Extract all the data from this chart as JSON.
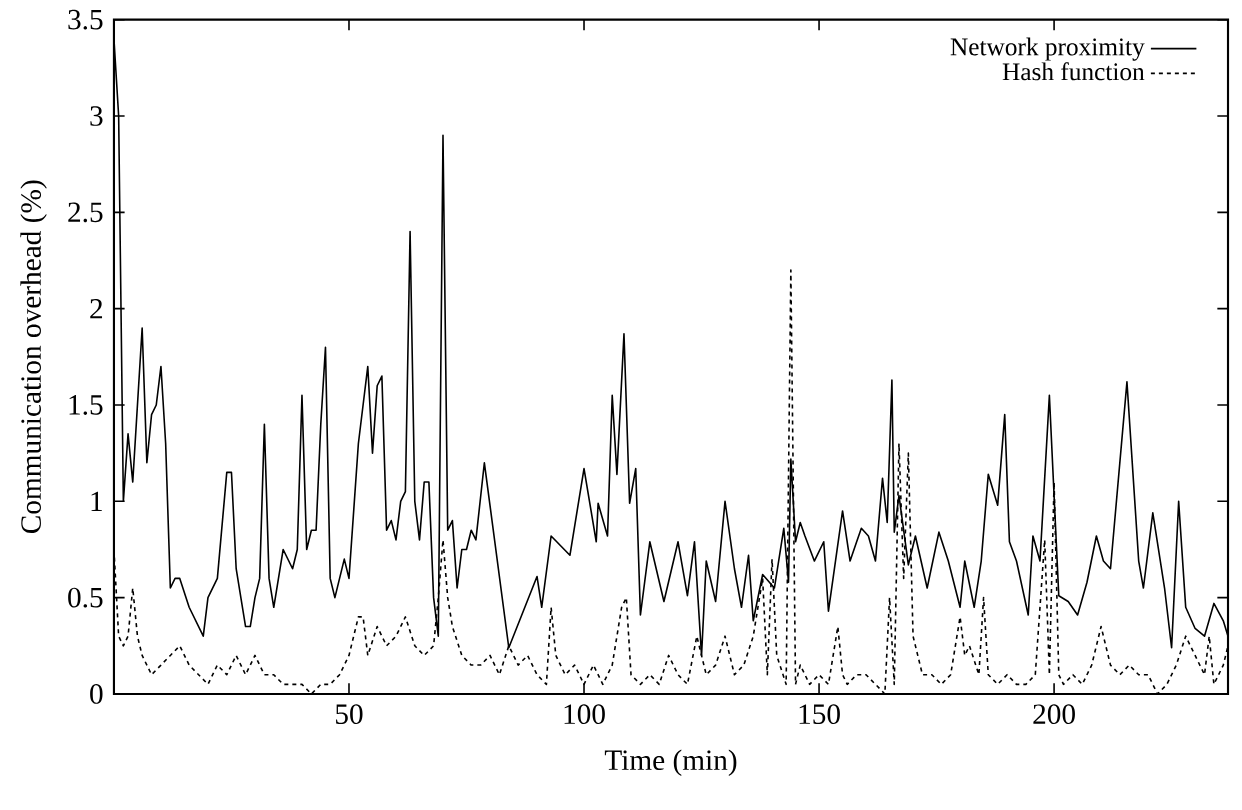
{
  "chart_data": {
    "type": "line",
    "xlabel": "Time (min)",
    "ylabel": "Communication overhead (%)",
    "xlim": [
      0,
      237
    ],
    "ylim": [
      0,
      3.5
    ],
    "xticks": [
      50,
      100,
      150,
      200
    ],
    "yticks": [
      0,
      0.5,
      1,
      1.5,
      2,
      2.5,
      3,
      3.5
    ],
    "grid": false,
    "legend": "top right",
    "marker": "none",
    "series": [
      {
        "name": "Network proximity",
        "color": "#000000",
        "line_style": "solid",
        "x": [
          0,
          1,
          2,
          3,
          4,
          6,
          7,
          8,
          9,
          10,
          11,
          12,
          13,
          14,
          16,
          18,
          19,
          20,
          22,
          24,
          25,
          26,
          28,
          29,
          30,
          31,
          32,
          33,
          34,
          36,
          38,
          39,
          40,
          41,
          42,
          43,
          44,
          45,
          46,
          47,
          48,
          49,
          50,
          52,
          53,
          54,
          55,
          56,
          57,
          58,
          59,
          60,
          61,
          62,
          63,
          64,
          65,
          66,
          67,
          68,
          69,
          70,
          71,
          72,
          73,
          74,
          75,
          76,
          77,
          78.8,
          84,
          90,
          91,
          93,
          97,
          100,
          102.6,
          103,
          105,
          106,
          107,
          108.5,
          109.7,
          111,
          112,
          114,
          117,
          120,
          122,
          123.5,
          125,
          126,
          128,
          130,
          132,
          133.5,
          135,
          136,
          138,
          140.5,
          142.5,
          143.5,
          144,
          145,
          146,
          147,
          149,
          151,
          152,
          155,
          156.6,
          158,
          159,
          160.5,
          162,
          163.5,
          164.5,
          165.5,
          166,
          167,
          169,
          170.5,
          173,
          175.5,
          177.5,
          180,
          181,
          183,
          184.5,
          186,
          188,
          189.5,
          190.5,
          192,
          194.5,
          195.5,
          197,
          199,
          201,
          203,
          205,
          207,
          209,
          210.5,
          212,
          215.5,
          218,
          219,
          221,
          223.5,
          225,
          226.5,
          228,
          230,
          232,
          234,
          236,
          237
        ],
        "values": [
          3.4,
          3.0,
          1.0,
          1.35,
          1.1,
          1.9,
          1.2,
          1.45,
          1.5,
          1.7,
          1.3,
          0.55,
          0.6,
          0.6,
          0.45,
          0.35,
          0.3,
          0.5,
          0.6,
          1.15,
          1.15,
          0.65,
          0.35,
          0.35,
          0.5,
          0.6,
          1.4,
          0.6,
          0.45,
          0.75,
          0.65,
          0.75,
          1.55,
          0.75,
          0.85,
          0.85,
          1.4,
          1.8,
          0.6,
          0.5,
          0.6,
          0.7,
          0.6,
          1.3,
          1.5,
          1.7,
          1.25,
          1.6,
          1.65,
          0.85,
          0.9,
          0.8,
          1.0,
          1.05,
          2.4,
          1.0,
          0.8,
          1.1,
          1.1,
          0.5,
          0.3,
          2.9,
          0.85,
          0.9,
          0.55,
          0.75,
          0.75,
          0.85,
          0.8,
          1.2,
          0.24,
          0.61,
          0.45,
          0.82,
          0.72,
          1.17,
          0.79,
          0.99,
          0.82,
          1.55,
          1.14,
          1.87,
          0.99,
          1.17,
          0.41,
          0.79,
          0.48,
          0.79,
          0.51,
          0.79,
          0.2,
          0.69,
          0.48,
          1.0,
          0.65,
          0.45,
          0.72,
          0.38,
          0.62,
          0.55,
          0.86,
          0.58,
          1.22,
          0.79,
          0.89,
          0.82,
          0.69,
          0.79,
          0.43,
          0.95,
          0.69,
          0.79,
          0.86,
          0.82,
          0.69,
          1.12,
          0.89,
          1.63,
          0.84,
          1.03,
          0.67,
          0.82,
          0.55,
          0.84,
          0.69,
          0.45,
          0.69,
          0.45,
          0.69,
          1.14,
          0.98,
          1.45,
          0.79,
          0.69,
          0.41,
          0.82,
          0.69,
          1.55,
          0.51,
          0.48,
          0.41,
          0.58,
          0.82,
          0.69,
          0.65,
          1.62,
          0.69,
          0.55,
          0.94,
          0.55,
          0.24,
          1.0,
          0.45,
          0.34,
          0.3,
          0.47,
          0.38,
          0.3
        ]
      },
      {
        "name": "Hash function",
        "color": "#000000",
        "line_style": "dashed",
        "x": [
          0,
          1,
          2,
          3,
          4,
          5,
          6,
          8,
          10,
          12,
          14,
          16,
          18,
          20,
          22,
          24,
          26,
          28,
          30,
          32,
          34,
          36,
          38,
          40,
          42,
          44,
          46,
          48,
          50,
          52,
          53,
          54,
          56,
          58,
          60,
          62,
          64,
          66,
          68,
          69,
          70,
          71,
          72,
          74,
          76,
          78,
          80,
          82,
          84,
          86,
          88,
          90,
          92,
          93,
          94,
          96,
          98,
          100,
          102,
          104,
          106,
          108,
          109,
          110,
          112,
          114,
          116,
          118,
          120,
          122,
          124,
          126,
          128,
          130,
          132,
          134,
          136,
          138,
          139,
          140,
          141,
          143,
          144,
          145,
          146,
          148,
          150,
          152,
          154,
          155,
          156,
          158,
          160,
          162,
          164,
          165,
          166,
          167,
          168,
          169,
          170,
          172,
          174,
          176,
          178,
          180,
          181,
          182,
          184,
          185,
          186,
          188,
          190,
          192,
          194,
          196,
          198,
          199,
          200,
          201,
          202,
          204,
          206,
          208,
          210,
          212,
          214,
          216,
          218,
          220,
          222,
          224,
          226,
          228,
          230,
          232,
          233,
          234,
          236,
          237
        ],
        "values": [
          0.75,
          0.3,
          0.25,
          0.3,
          0.55,
          0.3,
          0.2,
          0.1,
          0.15,
          0.2,
          0.25,
          0.15,
          0.1,
          0.05,
          0.15,
          0.1,
          0.2,
          0.1,
          0.2,
          0.1,
          0.1,
          0.05,
          0.05,
          0.05,
          0.0,
          0.05,
          0.05,
          0.1,
          0.2,
          0.4,
          0.4,
          0.2,
          0.35,
          0.25,
          0.3,
          0.4,
          0.25,
          0.2,
          0.25,
          0.5,
          0.8,
          0.5,
          0.35,
          0.2,
          0.15,
          0.15,
          0.2,
          0.1,
          0.25,
          0.15,
          0.2,
          0.1,
          0.05,
          0.45,
          0.2,
          0.1,
          0.15,
          0.05,
          0.15,
          0.05,
          0.15,
          0.45,
          0.5,
          0.1,
          0.05,
          0.1,
          0.05,
          0.2,
          0.1,
          0.05,
          0.3,
          0.1,
          0.15,
          0.3,
          0.1,
          0.15,
          0.3,
          0.6,
          0.1,
          0.7,
          0.2,
          0.05,
          2.2,
          0.05,
          0.15,
          0.05,
          0.1,
          0.05,
          0.35,
          0.1,
          0.05,
          0.1,
          0.1,
          0.05,
          0.0,
          0.5,
          0.05,
          1.3,
          0.6,
          1.25,
          0.3,
          0.1,
          0.1,
          0.05,
          0.1,
          0.4,
          0.2,
          0.25,
          0.1,
          0.5,
          0.1,
          0.05,
          0.1,
          0.05,
          0.05,
          0.1,
          0.8,
          0.1,
          1.1,
          0.1,
          0.05,
          0.1,
          0.05,
          0.15,
          0.35,
          0.15,
          0.1,
          0.15,
          0.1,
          0.1,
          0.0,
          0.05,
          0.15,
          0.3,
          0.2,
          0.1,
          0.3,
          0.05,
          0.15,
          0.25
        ]
      }
    ]
  }
}
